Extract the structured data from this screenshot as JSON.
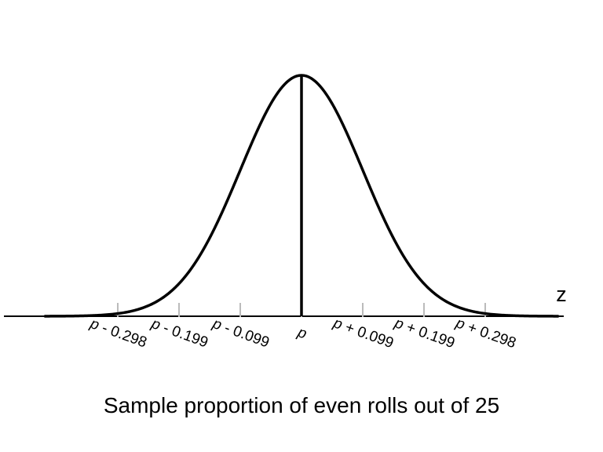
{
  "chart_data": {
    "type": "line",
    "title": "",
    "xlabel": "Sample proportion of even rolls out of 25",
    "axis_variable": "z",
    "center_label": "p",
    "xlim": [
      -3.5,
      4.2
    ],
    "ylim": [
      0,
      0.4
    ],
    "distribution": "standard normal density",
    "tick_positions": [
      -3,
      -2,
      -1,
      0,
      1,
      2,
      3
    ],
    "tick_labels": [
      {
        "z": -3,
        "p": "p",
        "rest": " - 0.298"
      },
      {
        "z": -2,
        "p": "p",
        "rest": " - 0.199"
      },
      {
        "z": -1,
        "p": "p",
        "rest": " - 0.099"
      },
      {
        "z": 0,
        "p": "p",
        "rest": ""
      },
      {
        "z": 1,
        "p": "p",
        "rest": " + 0.099"
      },
      {
        "z": 2,
        "p": "p",
        "rest": " + 0.199"
      },
      {
        "z": 3,
        "p": "p",
        "rest": " + 0.298"
      }
    ],
    "curve_color": "#000000",
    "tick_color": "#bbbbbb",
    "grid": false,
    "legend": "none"
  }
}
